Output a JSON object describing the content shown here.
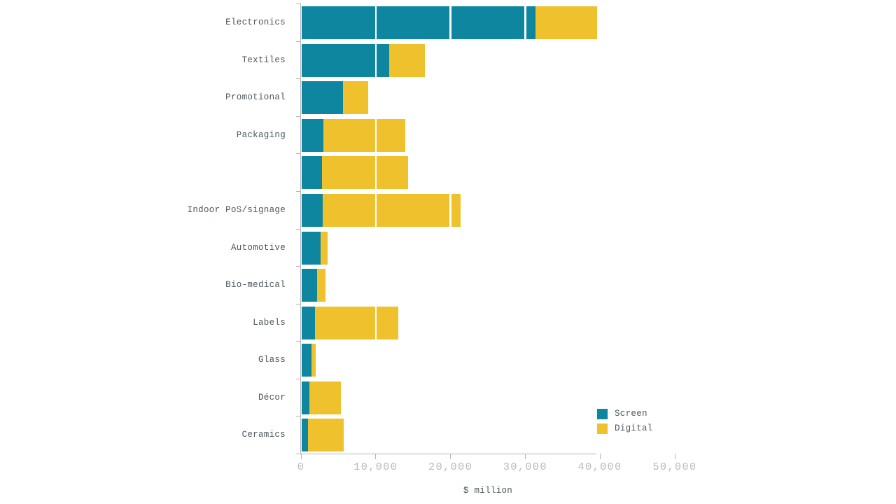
{
  "chart_data": {
    "type": "bar",
    "orientation": "horizontal",
    "stacked": true,
    "title": "",
    "xlabel": "$ million",
    "ylabel": "",
    "categories": [
      "Electronics",
      "Textiles",
      "Promotional",
      "Packaging",
      "",
      "Indoor PoS/signage",
      "Automotive",
      "Bio-medical",
      "Labels",
      "Glass",
      "Décor",
      "Ceramics"
    ],
    "series": [
      {
        "name": "Screen",
        "color": "#0e86a0",
        "values": [
          31300,
          11700,
          5500,
          2900,
          2700,
          2800,
          2500,
          2100,
          1800,
          1300,
          1000,
          850
        ]
      },
      {
        "name": "Digital",
        "color": "#eec12d",
        "values": [
          8200,
          4800,
          3400,
          11000,
          11500,
          18500,
          950,
          1100,
          11100,
          550,
          4200,
          4800
        ]
      }
    ],
    "xlim": [
      0,
      50000
    ],
    "xticks": [
      0,
      10000,
      20000,
      30000,
      40000,
      50000
    ],
    "xtick_labels": [
      "0",
      "10,000",
      "20,000",
      "30,000",
      "40,000",
      "50,000"
    ],
    "grid": "white-vertical-lines-over-bars",
    "legend_position": "bottom-right",
    "axis_colors": {
      "line": "#b2b6b8",
      "tick_text": "#b6b9ba",
      "label_text": "#4d565c"
    }
  },
  "legend": {
    "items": [
      {
        "label": "Screen",
        "color": "#0e86a0"
      },
      {
        "label": "Digital",
        "color": "#eec12d"
      }
    ]
  }
}
